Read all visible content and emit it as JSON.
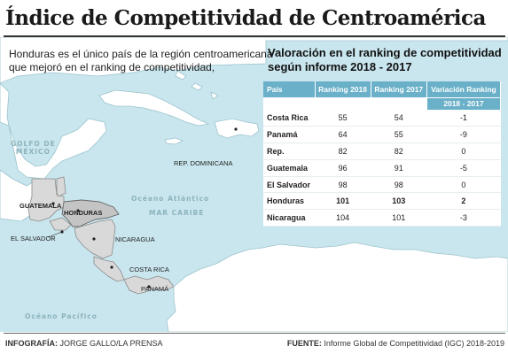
{
  "title": "Índice de Competitividad de Centroamérica",
  "intro": "Honduras es el único país de la región centroamericana que mejoró en el ranking de competitividad,",
  "map_labels": {
    "golfo_line1": "GOLFO DE",
    "golfo_line2": "MÉXICO",
    "oceano_atlantico": "Océano Atlántico",
    "mar_caribe": "MAR CARIBE",
    "oceano_pacifico": "Océano Pacífico",
    "guatemala": "GUATEMALA",
    "honduras": "HONDURAS",
    "el_salvador": "EL SALVADOR",
    "nicaragua": "NICARAGUA",
    "costa_rica": "COSTA RICA",
    "panama": "PANAMÁ",
    "rep_dominicana": "REP. DOMINICANA"
  },
  "table": {
    "title": "Valoración en el ranking de competitividad según informe 2018 - 2017",
    "headers": [
      "País",
      "Ranking 2018",
      "Ranking 2017",
      "Variación Ranking"
    ],
    "subheader": "2018 - 2017",
    "rows": [
      {
        "country": "Costa Rica",
        "r2018": "55",
        "r2017": "54",
        "var": "-1"
      },
      {
        "country": "Panamá",
        "r2018": "64",
        "r2017": "55",
        "var": "-9"
      },
      {
        "country": "Rep.",
        "r2018": "82",
        "r2017": "82",
        "var": "0"
      },
      {
        "country": "Guatemala",
        "r2018": "96",
        "r2017": "91",
        "var": "-5"
      },
      {
        "country": "El Salvador",
        "r2018": "98",
        "r2017": "98",
        "var": "0"
      },
      {
        "country": "Honduras",
        "r2018": "101",
        "r2017": "103",
        "var": "2"
      },
      {
        "country": "Nicaragua",
        "r2018": "104",
        "r2017": "101",
        "var": "-3"
      }
    ]
  },
  "footer": {
    "credit_label": "INFOGRAFÍA:",
    "credit_value": " JORGE GALLO/LA PRENSA",
    "source_label": "FUENTE:",
    "source_value": " Informe Global de Competitividad (IGC) 2018-2019"
  },
  "colors": {
    "sea": "#c9e6ee",
    "land": "#ffffff",
    "ca_land": "#d9d9d9",
    "honduras": "#c4c4c4",
    "table_header": "#6ab0c8"
  }
}
